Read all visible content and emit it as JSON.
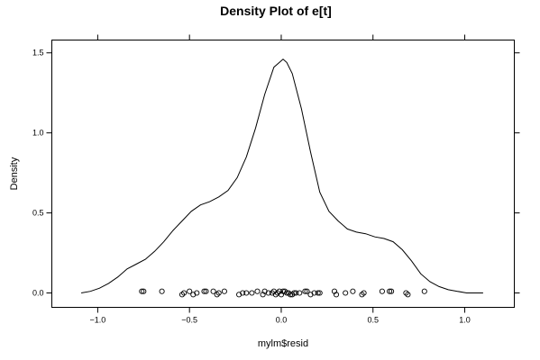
{
  "chart_data": {
    "type": "line",
    "title": "Density Plot of e[t]",
    "xlabel": "mylm$resid",
    "ylabel": "Density",
    "xlim": [
      -1.25,
      1.27
    ],
    "ylim": [
      -0.09,
      1.58
    ],
    "x_ticks": [
      -1.0,
      -0.5,
      0.0,
      0.5,
      1.0
    ],
    "x_tick_labels": [
      "−1.0",
      "−0.5",
      "0.0",
      "0.5",
      "1.0"
    ],
    "y_ticks": [
      0.0,
      0.5,
      1.0,
      1.5
    ],
    "y_tick_labels": [
      "0.0",
      "0.5",
      "1.0",
      "1.5"
    ],
    "grid": false,
    "series": [
      {
        "x": [
          -1.09,
          -1.04,
          -0.99,
          -0.94,
          -0.89,
          -0.84,
          -0.79,
          -0.74,
          -0.69,
          -0.64,
          -0.59,
          -0.54,
          -0.49,
          -0.44,
          -0.39,
          -0.34,
          -0.29,
          -0.24,
          -0.19,
          -0.14,
          -0.09,
          -0.04,
          0.01,
          0.03,
          0.06,
          0.11,
          0.16,
          0.21,
          0.26,
          0.31,
          0.36,
          0.41,
          0.46,
          0.51,
          0.56,
          0.61,
          0.66,
          0.71,
          0.76,
          0.81,
          0.86,
          0.91,
          0.96,
          1.01,
          1.06,
          1.1
        ],
        "y": [
          0.0,
          0.01,
          0.03,
          0.06,
          0.1,
          0.15,
          0.18,
          0.21,
          0.26,
          0.32,
          0.39,
          0.45,
          0.51,
          0.55,
          0.57,
          0.6,
          0.64,
          0.72,
          0.85,
          1.03,
          1.24,
          1.41,
          1.46,
          1.44,
          1.37,
          1.15,
          0.88,
          0.63,
          0.51,
          0.45,
          0.4,
          0.38,
          0.37,
          0.35,
          0.34,
          0.32,
          0.27,
          0.2,
          0.12,
          0.07,
          0.04,
          0.02,
          0.01,
          0.0,
          0.0,
          0.0
        ]
      }
    ],
    "points": {
      "x": [
        -0.76,
        -0.75,
        -0.65,
        -0.54,
        -0.53,
        -0.5,
        -0.48,
        -0.46,
        -0.42,
        -0.41,
        -0.37,
        -0.35,
        -0.34,
        -0.31,
        -0.23,
        -0.21,
        -0.19,
        -0.16,
        -0.13,
        -0.1,
        -0.09,
        -0.07,
        -0.05,
        -0.04,
        -0.03,
        -0.02,
        -0.01,
        0.0,
        0.01,
        0.02,
        0.03,
        0.04,
        0.05,
        0.06,
        0.07,
        0.08,
        0.1,
        0.13,
        0.14,
        0.16,
        0.18,
        0.2,
        0.21,
        0.29,
        0.3,
        0.35,
        0.39,
        0.44,
        0.45,
        0.55,
        0.59,
        0.6,
        0.68,
        0.69,
        0.78
      ],
      "y": [
        0.01,
        0.01,
        0.01,
        -0.01,
        0.0,
        0.01,
        -0.01,
        0.0,
        0.01,
        0.01,
        0.01,
        -0.01,
        0.0,
        0.01,
        -0.01,
        0.0,
        0.0,
        0.0,
        0.01,
        -0.01,
        0.01,
        0.0,
        0.0,
        0.01,
        -0.01,
        0.0,
        0.01,
        -0.01,
        0.01,
        0.01,
        0.0,
        0.0,
        -0.01,
        -0.01,
        0.0,
        0.0,
        0.0,
        0.01,
        0.01,
        -0.01,
        0.0,
        0.0,
        0.0,
        0.01,
        -0.01,
        0.0,
        0.01,
        -0.01,
        0.0,
        0.01,
        0.01,
        0.01,
        0.0,
        -0.01,
        0.01
      ]
    }
  }
}
